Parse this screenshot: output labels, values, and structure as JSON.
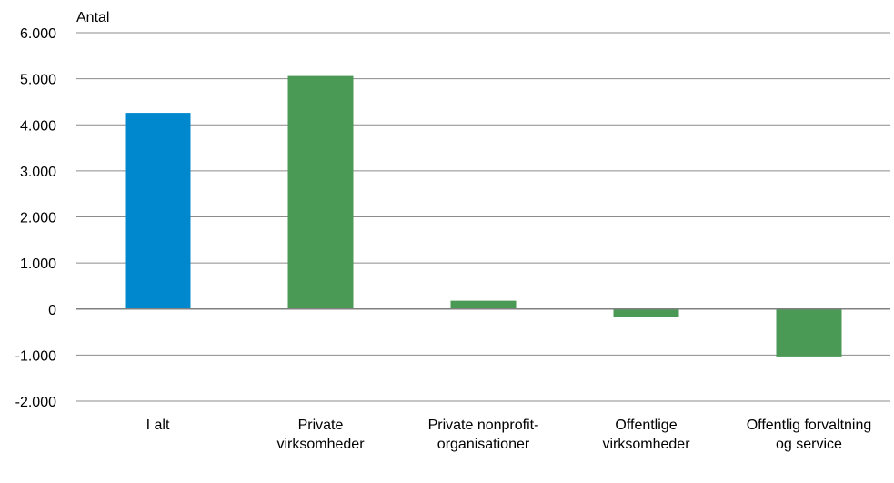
{
  "chart_data": {
    "type": "bar",
    "title": "",
    "xlabel": "",
    "ylabel": "Antal",
    "ylim": [
      -2000,
      6000
    ],
    "yticks": [
      6000,
      5000,
      4000,
      3000,
      2000,
      1000,
      0,
      -1000,
      -2000
    ],
    "ytick_labels": [
      "6.000",
      "5.000",
      "4.000",
      "3.000",
      "2.000",
      "1.000",
      "0",
      "-1.000",
      "-2.000"
    ],
    "grid": true,
    "legend": "none",
    "categories": [
      [
        "I alt"
      ],
      [
        "Private",
        "virksomheder"
      ],
      [
        "Private nonprofit-",
        "organisationer"
      ],
      [
        "Offentlige",
        "virksomheder"
      ],
      [
        "Offentlig forvaltning",
        "og service"
      ]
    ],
    "values": [
      4260,
      5060,
      180,
      -170,
      -1030
    ],
    "bar_colors": [
      "#0088CE",
      "#4A9A55",
      "#4A9A55",
      "#4A9A55",
      "#4A9A55"
    ],
    "gridline_color": "#8C8C8C",
    "zero_line_color": "#808080"
  }
}
